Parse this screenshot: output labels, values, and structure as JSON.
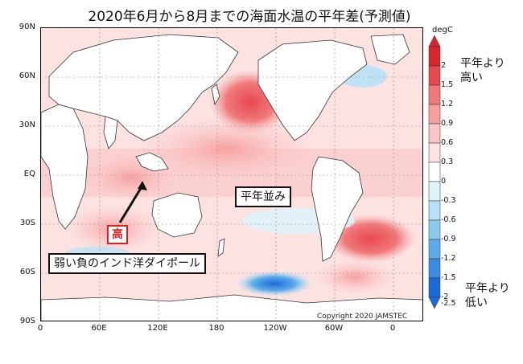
{
  "title": "2020年6月から8月までの海面水温の平年差(予測値)",
  "axes": {
    "lat_labels": [
      "90N",
      "60N",
      "30N",
      "EQ",
      "30S",
      "60S",
      "90S"
    ],
    "lon_labels": [
      "0",
      "60E",
      "120E",
      "180",
      "120W",
      "60W",
      "0"
    ]
  },
  "colorbar": {
    "unit": "degC",
    "labels": [
      "2",
      "1.5",
      "1.2",
      "0.9",
      "0.6",
      "0.3",
      "0",
      "-0.3",
      "-0.6",
      "-0.9",
      "-1.2",
      "-1.5",
      "-2",
      "-2.5"
    ],
    "colors": [
      "#d7262e",
      "#e8494f",
      "#f0797a",
      "#f6a0a0",
      "#fac5c5",
      "#fde2e2",
      "#ffffff",
      "#dff3fb",
      "#b7e2f5",
      "#8ccbee",
      "#5cacea",
      "#3b8be0",
      "#1e6ad8"
    ],
    "top_annotation": [
      "平年より",
      "高い"
    ],
    "bottom_annotation": [
      "平年より",
      "低い"
    ]
  },
  "annotations": {
    "high_label": "高",
    "normal_label": "平年並み",
    "iod_label": "弱い負のインド洋ダイポール"
  },
  "copyright": "Copyright 2020 JAMSTEC"
}
